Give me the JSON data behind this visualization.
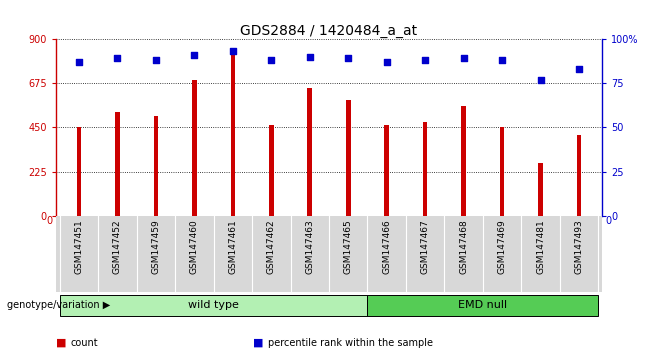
{
  "title": "GDS2884 / 1420484_a_at",
  "samples": [
    "GSM147451",
    "GSM147452",
    "GSM147459",
    "GSM147460",
    "GSM147461",
    "GSM147462",
    "GSM147463",
    "GSM147465",
    "GSM147466",
    "GSM147467",
    "GSM147468",
    "GSM147469",
    "GSM147481",
    "GSM147493"
  ],
  "counts": [
    450,
    530,
    510,
    690,
    840,
    460,
    650,
    590,
    460,
    480,
    560,
    450,
    270,
    410
  ],
  "percentiles": [
    87,
    89,
    88,
    91,
    93,
    88,
    90,
    89,
    87,
    88,
    89,
    88,
    77,
    83
  ],
  "bar_color": "#cc0000",
  "dot_color": "#0000cc",
  "ylim_left": [
    0,
    900
  ],
  "ylim_right": [
    0,
    100
  ],
  "yticks_left": [
    0,
    225,
    450,
    675,
    900
  ],
  "yticks_right": [
    0,
    25,
    50,
    75,
    100
  ],
  "groups": [
    {
      "label": "wild type",
      "start": 0,
      "end": 8,
      "color": "#b3f0b3"
    },
    {
      "label": "EMD null",
      "start": 8,
      "end": 14,
      "color": "#55cc55"
    }
  ],
  "left_axis_color": "#cc0000",
  "right_axis_color": "#0000cc",
  "legend_items": [
    {
      "label": "count",
      "color": "#cc0000"
    },
    {
      "label": "percentile rank within the sample",
      "color": "#0000cc"
    }
  ],
  "genotype_label": "genotype/variation",
  "title_fontsize": 10,
  "tick_fontsize": 7,
  "label_fontsize": 6.5,
  "bar_width": 0.12
}
